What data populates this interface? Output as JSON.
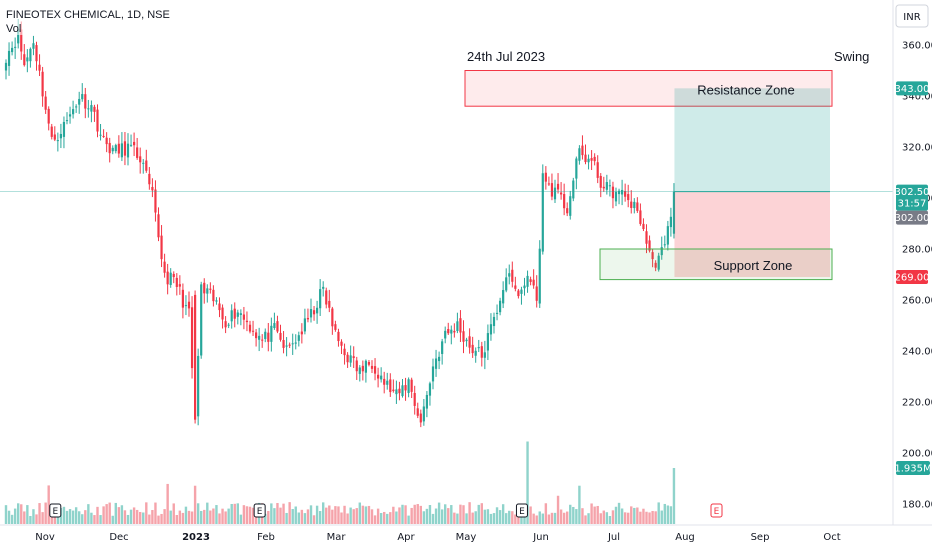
{
  "header": {
    "title": "FINEOTEX CHEMICAL, 1D, NSE",
    "vol_label": "Vol",
    "currency": "INR"
  },
  "colors": {
    "up": "#26a69a",
    "down": "#f23645",
    "vol_up": "#8fd3cb",
    "vol_down": "#f5a3aa"
  },
  "chart_data": {
    "type": "candlestick",
    "ylim": [
      170,
      370
    ],
    "y_ticks": [
      360,
      340,
      320,
      300,
      280,
      260,
      240,
      220,
      200,
      180
    ],
    "x_ticks": [
      "Nov",
      "Dec",
      "2023",
      "Feb",
      "Mar",
      "Apr",
      "May",
      "Jun",
      "Jul",
      "Aug",
      "Sep",
      "Oct"
    ],
    "bars": 190,
    "start_date": "2022-10-20",
    "waypoints": [
      [
        0,
        356
      ],
      [
        4,
        364
      ],
      [
        6,
        352
      ],
      [
        9,
        362
      ],
      [
        12,
        342
      ],
      [
        15,
        322
      ],
      [
        20,
        330
      ],
      [
        24,
        340
      ],
      [
        28,
        336
      ],
      [
        32,
        322
      ],
      [
        36,
        318
      ],
      [
        40,
        320
      ],
      [
        44,
        316
      ],
      [
        48,
        300
      ],
      [
        52,
        270
      ],
      [
        56,
        266
      ],
      [
        60,
        254
      ],
      [
        62,
        212
      ],
      [
        64,
        264
      ],
      [
        68,
        260
      ],
      [
        72,
        252
      ],
      [
        76,
        256
      ],
      [
        80,
        250
      ],
      [
        84,
        244
      ],
      [
        88,
        248
      ],
      [
        92,
        240
      ],
      [
        96,
        246
      ],
      [
        100,
        254
      ],
      [
        104,
        264
      ],
      [
        108,
        246
      ],
      [
        112,
        238
      ],
      [
        116,
        232
      ],
      [
        120,
        236
      ],
      [
        124,
        228
      ],
      [
        128,
        222
      ],
      [
        132,
        228
      ],
      [
        136,
        212
      ],
      [
        140,
        234
      ],
      [
        144,
        246
      ],
      [
        148,
        250
      ],
      [
        152,
        242
      ],
      [
        156,
        238
      ],
      [
        160,
        252
      ],
      [
        164,
        270
      ],
      [
        168,
        262
      ],
      [
        172,
        270
      ],
      [
        174,
        258
      ],
      [
        176,
        308
      ],
      [
        180,
        302
      ],
      [
        184,
        296
      ],
      [
        188,
        318
      ],
      [
        192,
        314
      ],
      [
        196,
        304
      ],
      [
        200,
        302
      ],
      [
        204,
        300
      ],
      [
        208,
        292
      ],
      [
        212,
        274
      ],
      [
        216,
        280
      ],
      [
        219,
        302
      ]
    ],
    "volume_spikes": {
      "14": 1.8,
      "53": 2.0,
      "62": 1.9,
      "171": 4.0,
      "181": 1.4,
      "188": 1.9
    },
    "current_price": 302.5,
    "current_volume": "1.935M",
    "price_badges": [
      {
        "value": 343.0,
        "label": "343.00",
        "color": "#26a69a"
      },
      {
        "value": 302.5,
        "label": "302.50",
        "label2": "31:57",
        "color": "#26a69a"
      },
      {
        "value": 302.0,
        "label": "302.00",
        "color": "#787b86"
      },
      {
        "value": 269.0,
        "label": "269.00",
        "color": "#f23645"
      }
    ],
    "annotations": {
      "date_text": "24th Jul 2023",
      "swing_text": "Swing",
      "resistance_label": "Resistance Zone",
      "support_label": "Support Zone",
      "resistance_box": [
        336,
        350
      ],
      "support_box": [
        268,
        280
      ],
      "target_zone": [
        302.5,
        343
      ],
      "stop_zone": [
        269,
        302.5
      ]
    },
    "earnings_markers": [
      16,
      83,
      169,
      237
    ]
  }
}
